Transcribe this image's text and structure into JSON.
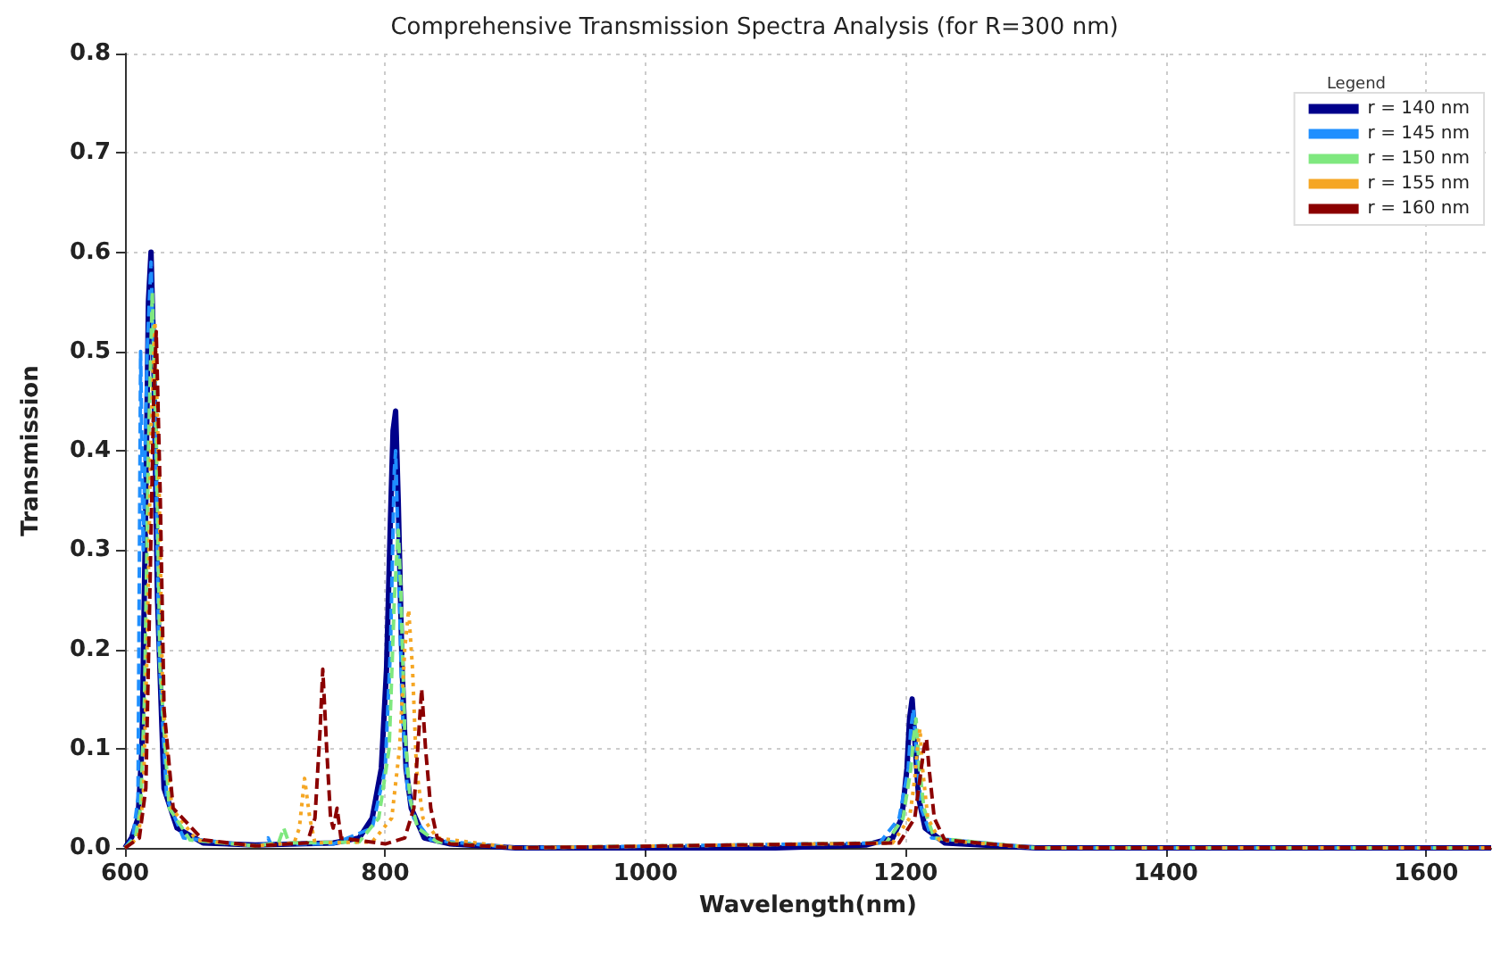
{
  "chart_data": {
    "type": "line",
    "title": "Comprehensive Transmission Spectra Analysis (for R=300 nm)",
    "xlabel": "Wavelength(nm)",
    "ylabel": "Transmission",
    "legend_title": "Legend",
    "legend": "top right",
    "grid": true,
    "marker": "none",
    "xlim": [
      600,
      1650
    ],
    "xticks": [
      600,
      800,
      1000,
      1200,
      1400,
      1600
    ],
    "ylim": [
      0,
      0.8
    ],
    "yticks": [
      {
        "value": 0,
        "label": "0.0"
      },
      0.1,
      0.2,
      0.3,
      0.4,
      0.5,
      0.6,
      0.7,
      0.8
    ],
    "series": [
      {
        "name": "r = 140 nm",
        "color": "#00008b",
        "line_style": "solid",
        "x": [
          600,
          605,
          610,
          613,
          616,
          618,
          620,
          622,
          625,
          630,
          640,
          660,
          700,
          760,
          780,
          790,
          797,
          801,
          804,
          806,
          808,
          810,
          813,
          816,
          820,
          830,
          850,
          900,
          1100,
          1170,
          1190,
          1197,
          1201,
          1203,
          1205,
          1207,
          1210,
          1215,
          1230,
          1300,
          1650
        ],
        "values": [
          0,
          0.01,
          0.03,
          0.1,
          0.35,
          0.55,
          0.6,
          0.5,
          0.25,
          0.06,
          0.02,
          0.005,
          0.003,
          0.005,
          0.01,
          0.03,
          0.08,
          0.18,
          0.33,
          0.42,
          0.44,
          0.35,
          0.18,
          0.08,
          0.04,
          0.01,
          0.004,
          0,
          0,
          0.003,
          0.01,
          0.03,
          0.08,
          0.13,
          0.15,
          0.11,
          0.05,
          0.02,
          0.005,
          0,
          0
        ]
      },
      {
        "name": "r = 145 nm",
        "color": "#1f8fff",
        "line_style": "dashed",
        "x": [
          600,
          606,
          610,
          612,
          614,
          617,
          620,
          623,
          626,
          632,
          645,
          700,
          708,
          710,
          712,
          760,
          790,
          800,
          804,
          807,
          808,
          810,
          813,
          817,
          822,
          835,
          900,
          1180,
          1195,
          1202,
          1204,
          1206,
          1208,
          1212,
          1220,
          1300,
          1650
        ],
        "values": [
          0,
          0.01,
          0.05,
          0.5,
          0.3,
          0.5,
          0.59,
          0.45,
          0.2,
          0.05,
          0.01,
          0.002,
          0.004,
          0.01,
          0.004,
          0.004,
          0.02,
          0.08,
          0.2,
          0.38,
          0.4,
          0.3,
          0.14,
          0.06,
          0.03,
          0.008,
          0,
          0.005,
          0.03,
          0.08,
          0.12,
          0.14,
          0.1,
          0.04,
          0.01,
          0,
          0
        ]
      },
      {
        "name": "r = 150 nm",
        "color": "#7fe87f",
        "line_style": "dashed",
        "x": [
          600,
          608,
          612,
          615,
          618,
          621,
          624,
          627,
          634,
          650,
          700,
          718,
          722,
          726,
          780,
          795,
          803,
          807,
          810,
          812,
          815,
          819,
          825,
          840,
          900,
          1185,
          1198,
          1204,
          1206,
          1208,
          1210,
          1214,
          1222,
          1300,
          1650
        ],
        "values": [
          0,
          0.01,
          0.04,
          0.15,
          0.4,
          0.56,
          0.42,
          0.18,
          0.04,
          0.008,
          0.002,
          0.005,
          0.02,
          0.005,
          0.006,
          0.03,
          0.1,
          0.25,
          0.32,
          0.26,
          0.12,
          0.05,
          0.02,
          0.006,
          0,
          0.005,
          0.03,
          0.08,
          0.11,
          0.13,
          0.09,
          0.04,
          0.01,
          0,
          0
        ]
      },
      {
        "name": "r = 155 nm",
        "color": "#f5a623",
        "line_style": "dotted",
        "x": [
          600,
          610,
          614,
          617,
          620,
          623,
          626,
          629,
          636,
          655,
          700,
          730,
          734,
          738,
          742,
          746,
          790,
          805,
          811,
          815,
          818,
          821,
          824,
          829,
          840,
          900,
          1190,
          1203,
          1207,
          1209,
          1211,
          1213,
          1217,
          1226,
          1300,
          1650
        ],
        "values": [
          0,
          0.01,
          0.05,
          0.2,
          0.42,
          0.53,
          0.38,
          0.15,
          0.04,
          0.008,
          0.002,
          0.005,
          0.02,
          0.07,
          0.03,
          0.005,
          0.006,
          0.03,
          0.1,
          0.2,
          0.24,
          0.18,
          0.08,
          0.03,
          0.01,
          0,
          0.005,
          0.03,
          0.07,
          0.1,
          0.12,
          0.08,
          0.03,
          0.008,
          0,
          0
        ]
      },
      {
        "name": "r = 160 nm",
        "color": "#8b0000",
        "line_style": "dashed",
        "x": [
          600,
          611,
          616,
          619,
          622,
          624,
          627,
          630,
          637,
          660,
          700,
          740,
          746,
          750,
          752,
          755,
          758,
          760,
          763,
          766,
          800,
          815,
          822,
          826,
          828,
          831,
          835,
          840,
          850,
          900,
          1195,
          1207,
          1211,
          1214,
          1216,
          1218,
          1222,
          1230,
          1300,
          1650
        ],
        "values": [
          0,
          0.01,
          0.06,
          0.25,
          0.45,
          0.52,
          0.36,
          0.14,
          0.04,
          0.008,
          0.002,
          0.005,
          0.03,
          0.12,
          0.18,
          0.1,
          0.03,
          0.02,
          0.04,
          0.01,
          0.004,
          0.01,
          0.04,
          0.12,
          0.16,
          0.1,
          0.04,
          0.01,
          0.004,
          0,
          0.005,
          0.03,
          0.07,
          0.1,
          0.11,
          0.08,
          0.03,
          0.008,
          0,
          0
        ]
      }
    ]
  }
}
